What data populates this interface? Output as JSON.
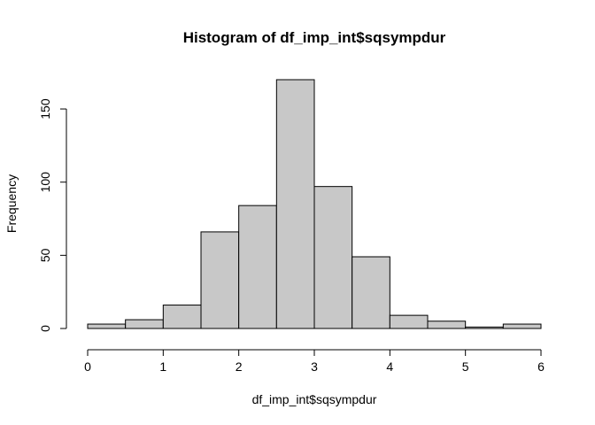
{
  "chart_data": {
    "type": "bar",
    "title": "Histogram of df_imp_int$sqsympdur",
    "xlabel": "df_imp_int$sqsympdur",
    "ylabel": "Frequency",
    "bin_edges": [
      0,
      0.5,
      1,
      1.5,
      2,
      2.5,
      3,
      3.5,
      4,
      4.5,
      5,
      5.5,
      6
    ],
    "values": [
      3,
      6,
      16,
      66,
      84,
      170,
      97,
      49,
      9,
      5,
      1,
      3
    ],
    "xlim": [
      0,
      6
    ],
    "ylim": [
      0,
      170
    ],
    "x_ticks": [
      0,
      1,
      2,
      3,
      4,
      5,
      6
    ],
    "y_ticks": [
      0,
      50,
      100,
      150
    ],
    "bar_color": "#c8c8c8",
    "grid": false,
    "legend": "none"
  }
}
